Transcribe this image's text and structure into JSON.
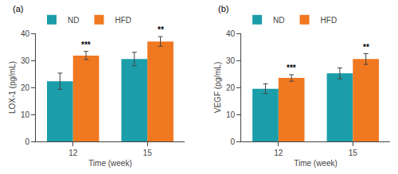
{
  "chart_data": [
    {
      "type": "bar",
      "title": "(a)",
      "xlabel": "Time (week)",
      "ylabel": "LOX-1 (pg/mL)",
      "categories": [
        "12",
        "15"
      ],
      "series": [
        {
          "name": "ND",
          "color": "#1b9eaa",
          "values": [
            22.3,
            30.5
          ],
          "errors": [
            3.0,
            2.5
          ]
        },
        {
          "name": "HFD",
          "color": "#f07820",
          "values": [
            31.8,
            37.0
          ],
          "errors": [
            1.5,
            1.8
          ],
          "annotations": [
            "***",
            "**"
          ]
        }
      ],
      "ylim": [
        0,
        40
      ],
      "yticks": [
        0,
        10,
        20,
        30,
        40
      ],
      "grid": false,
      "legend": "top left"
    },
    {
      "type": "bar",
      "title": "(b)",
      "xlabel": "Time (week)",
      "ylabel": "VEGF (pg/mL)",
      "categories": [
        "12",
        "15"
      ],
      "series": [
        {
          "name": "ND",
          "color": "#1b9eaa",
          "values": [
            19.5,
            25.2
          ],
          "errors": [
            1.8,
            2.0
          ]
        },
        {
          "name": "HFD",
          "color": "#f07820",
          "values": [
            23.5,
            30.5
          ],
          "errors": [
            1.2,
            2.0
          ],
          "annotations": [
            "***",
            "**"
          ]
        }
      ],
      "ylim": [
        0,
        40
      ],
      "yticks": [
        0,
        10,
        20,
        30,
        40
      ],
      "grid": false,
      "legend": "top left"
    }
  ]
}
